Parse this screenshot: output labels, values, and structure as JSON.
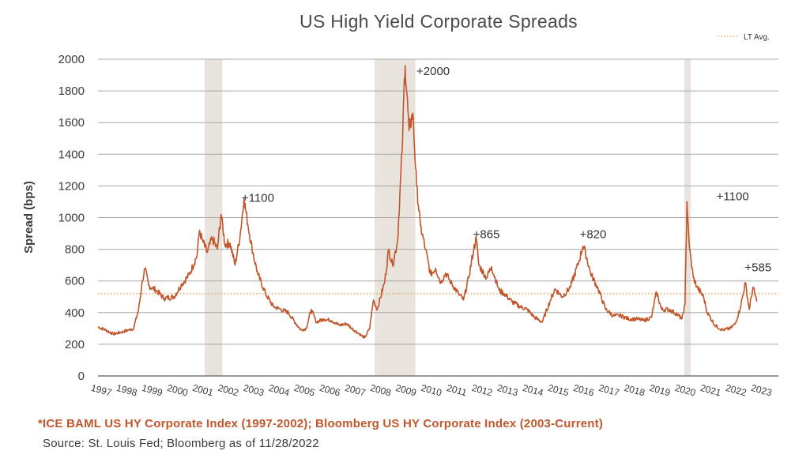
{
  "chart_data": {
    "type": "line",
    "title": "US High Yield Corporate Spreads",
    "ylabel": "Spread (bps)",
    "xlabel": "",
    "ylim": [
      0,
      2000
    ],
    "yticks": [
      "2000",
      "1800",
      "1600",
      "1400",
      "1200",
      "1000",
      "800",
      "600",
      "400",
      "200",
      "0"
    ],
    "xticks": [
      "1997",
      "1998",
      "1999",
      "2000",
      "2001",
      "2002",
      "2003",
      "2004",
      "2005",
      "2006",
      "2007",
      "2008",
      "2009",
      "2010",
      "2011",
      "2012",
      "2013",
      "2014",
      "2015",
      "2016",
      "2017",
      "2018",
      "2019",
      "2020",
      "2021",
      "2022",
      "2023"
    ],
    "grid": true,
    "legend": {
      "position": "top-right",
      "label": "LT Avg."
    },
    "lt_avg": 520,
    "recessions": [
      [
        2001.2,
        2001.9
      ],
      [
        2007.9,
        2009.5
      ],
      [
        2020.1,
        2020.35
      ]
    ],
    "series": [
      {
        "name": "",
        "color": "#c0562a",
        "points": [
          [
            1997.0,
            310
          ],
          [
            1997.3,
            290
          ],
          [
            1997.6,
            265
          ],
          [
            1997.9,
            275
          ],
          [
            1998.2,
            290
          ],
          [
            1998.4,
            300
          ],
          [
            1998.6,
            420
          ],
          [
            1998.75,
            600
          ],
          [
            1998.85,
            680
          ],
          [
            1999.0,
            570
          ],
          [
            1999.3,
            540
          ],
          [
            1999.6,
            490
          ],
          [
            2000.0,
            500
          ],
          [
            2000.3,
            580
          ],
          [
            2000.6,
            640
          ],
          [
            2000.9,
            760
          ],
          [
            2001.0,
            920
          ],
          [
            2001.1,
            860
          ],
          [
            2001.3,
            780
          ],
          [
            2001.5,
            870
          ],
          [
            2001.7,
            800
          ],
          [
            2001.85,
            1020
          ],
          [
            2002.0,
            830
          ],
          [
            2002.2,
            840
          ],
          [
            2002.4,
            700
          ],
          [
            2002.6,
            890
          ],
          [
            2002.75,
            1120
          ],
          [
            2002.9,
            960
          ],
          [
            2003.1,
            780
          ],
          [
            2003.3,
            640
          ],
          [
            2003.6,
            520
          ],
          [
            2003.9,
            440
          ],
          [
            2004.2,
            420
          ],
          [
            2004.5,
            400
          ],
          [
            2004.8,
            330
          ],
          [
            2005.0,
            290
          ],
          [
            2005.2,
            300
          ],
          [
            2005.4,
            420
          ],
          [
            2005.6,
            340
          ],
          [
            2005.9,
            360
          ],
          [
            2006.2,
            350
          ],
          [
            2006.5,
            320
          ],
          [
            2006.8,
            330
          ],
          [
            2007.0,
            300
          ],
          [
            2007.3,
            265
          ],
          [
            2007.5,
            240
          ],
          [
            2007.7,
            300
          ],
          [
            2007.85,
            480
          ],
          [
            2008.0,
            420
          ],
          [
            2008.3,
            600
          ],
          [
            2008.45,
            800
          ],
          [
            2008.6,
            700
          ],
          [
            2008.8,
            850
          ],
          [
            2009.0,
            1500
          ],
          [
            2009.05,
            1800
          ],
          [
            2009.1,
            1960
          ],
          [
            2009.25,
            1550
          ],
          [
            2009.4,
            1660
          ],
          [
            2009.55,
            1200
          ],
          [
            2009.7,
            950
          ],
          [
            2009.9,
            800
          ],
          [
            2010.1,
            640
          ],
          [
            2010.3,
            680
          ],
          [
            2010.5,
            590
          ],
          [
            2010.7,
            650
          ],
          [
            2010.9,
            590
          ],
          [
            2011.2,
            520
          ],
          [
            2011.4,
            480
          ],
          [
            2011.6,
            620
          ],
          [
            2011.8,
            800
          ],
          [
            2011.9,
            870
          ],
          [
            2012.0,
            700
          ],
          [
            2012.3,
            620
          ],
          [
            2012.5,
            690
          ],
          [
            2012.8,
            540
          ],
          [
            2013.0,
            520
          ],
          [
            2013.3,
            470
          ],
          [
            2013.6,
            440
          ],
          [
            2013.9,
            420
          ],
          [
            2014.2,
            370
          ],
          [
            2014.5,
            340
          ],
          [
            2014.8,
            470
          ],
          [
            2015.0,
            550
          ],
          [
            2015.3,
            500
          ],
          [
            2015.6,
            560
          ],
          [
            2015.9,
            700
          ],
          [
            2016.1,
            820
          ],
          [
            2016.2,
            780
          ],
          [
            2016.4,
            650
          ],
          [
            2016.7,
            550
          ],
          [
            2017.0,
            420
          ],
          [
            2017.3,
            380
          ],
          [
            2017.6,
            380
          ],
          [
            2017.9,
            360
          ],
          [
            2018.2,
            360
          ],
          [
            2018.5,
            350
          ],
          [
            2018.8,
            370
          ],
          [
            2019.0,
            530
          ],
          [
            2019.2,
            420
          ],
          [
            2019.5,
            420
          ],
          [
            2019.8,
            390
          ],
          [
            2020.0,
            360
          ],
          [
            2020.12,
            450
          ],
          [
            2020.2,
            1100
          ],
          [
            2020.3,
            800
          ],
          [
            2020.45,
            620
          ],
          [
            2020.6,
            560
          ],
          [
            2020.85,
            500
          ],
          [
            2021.0,
            400
          ],
          [
            2021.3,
            320
          ],
          [
            2021.6,
            290
          ],
          [
            2021.9,
            300
          ],
          [
            2022.1,
            330
          ],
          [
            2022.3,
            430
          ],
          [
            2022.5,
            590
          ],
          [
            2022.65,
            420
          ],
          [
            2022.8,
            560
          ],
          [
            2022.95,
            470
          ]
        ]
      }
    ],
    "annotations": [
      {
        "text": "+1100",
        "x": 2003.3,
        "y": 1100
      },
      {
        "text": "+2000",
        "x": 2010.2,
        "y": 1900
      },
      {
        "text": "+865",
        "x": 2012.3,
        "y": 870
      },
      {
        "text": "+820",
        "x": 2016.5,
        "y": 870
      },
      {
        "text": "+1100",
        "x": 2022.0,
        "y": 1110
      },
      {
        "text": "+585",
        "x": 2023.0,
        "y": 660
      }
    ]
  },
  "notes": {
    "footnote": "*ICE BAML US HY Corporate Index (1997-2002); Bloomberg US HY Corporate Index (2003-Current)",
    "source": "Source: St. Louis Fed; Bloomberg as of 11/28/2022"
  }
}
